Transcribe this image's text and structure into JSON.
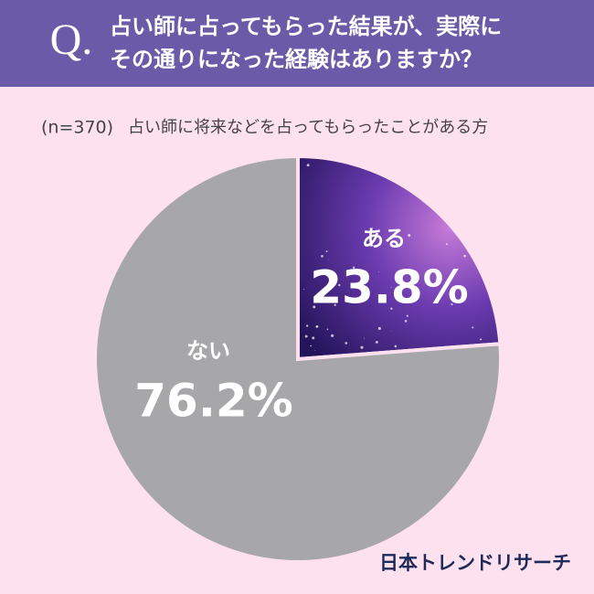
{
  "chart_data": {
    "type": "pie",
    "question_mark": "Q.",
    "title": [
      "占い師に占ってもらった結果が、実際に",
      "その通りになった経験はありますか？"
    ],
    "sample": "(n=370)",
    "subtitle": "占い師に将来などを占ってもらったことがある方",
    "categories": [
      "ある",
      "ない"
    ],
    "values": [
      23.8,
      76.2
    ],
    "value_labels": [
      "23.8%",
      "76.2%"
    ],
    "colors": [
      "#5a2f9e",
      "#a7a7a9"
    ],
    "source": "日本トレンドリサーチ"
  }
}
